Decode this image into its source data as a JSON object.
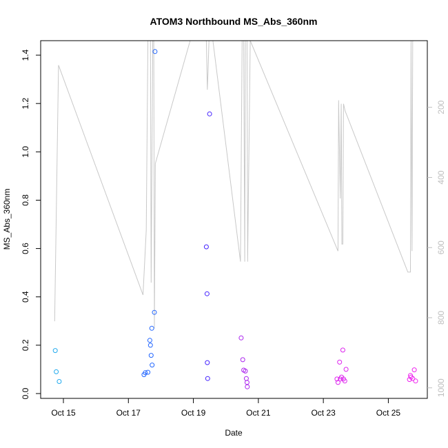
{
  "chart_data": {
    "type": "scatter",
    "title": "ATOM3 Northbound MS_Abs_360nm",
    "xlabel": "Date",
    "ylabel": "MS_Abs_360nm",
    "x_ticks": [
      "Oct 15",
      "Oct 17",
      "Oct 19",
      "Oct 21",
      "Oct 23",
      "Oct 25"
    ],
    "x_tick_days": [
      15,
      17,
      19,
      21,
      23,
      25
    ],
    "xlim_days": [
      14.3,
      26.2
    ],
    "ylim": [
      -0.02,
      1.46
    ],
    "y_ticks": [
      "0.0",
      "0.2",
      "0.4",
      "0.6",
      "0.8",
      "1.0",
      "1.2",
      "1.4"
    ],
    "y_tick_values": [
      0.0,
      0.2,
      0.4,
      0.6,
      0.8,
      1.0,
      1.2,
      1.4
    ],
    "y2_ticks": [
      "200",
      "400",
      "600",
      "800",
      "1000"
    ],
    "y2_tick_values": [
      200,
      400,
      600,
      800,
      1000
    ],
    "y2lim": [
      1030,
      10
    ],
    "grid": false,
    "points": [
      {
        "day": 14.75,
        "value": 0.178,
        "color": "#22aaee"
      },
      {
        "day": 14.78,
        "value": 0.09,
        "color": "#22aaee"
      },
      {
        "day": 14.87,
        "value": 0.05,
        "color": "#22aaee"
      },
      {
        "day": 17.48,
        "value": 0.078,
        "color": "#2266ff"
      },
      {
        "day": 17.52,
        "value": 0.086,
        "color": "#2266ff"
      },
      {
        "day": 17.6,
        "value": 0.088,
        "color": "#2266ff"
      },
      {
        "day": 17.66,
        "value": 0.22,
        "color": "#2266ff"
      },
      {
        "day": 17.68,
        "value": 0.2,
        "color": "#2266ff"
      },
      {
        "day": 17.7,
        "value": 0.158,
        "color": "#2266ff"
      },
      {
        "day": 17.72,
        "value": 0.27,
        "color": "#2266ff"
      },
      {
        "day": 17.73,
        "value": 0.118,
        "color": "#2266ff"
      },
      {
        "day": 17.8,
        "value": 0.336,
        "color": "#2266ff"
      },
      {
        "day": 17.82,
        "value": 1.415,
        "color": "#2266ff"
      },
      {
        "day": 19.4,
        "value": 0.607,
        "color": "#4422ff"
      },
      {
        "day": 19.42,
        "value": 0.413,
        "color": "#4422ff"
      },
      {
        "day": 19.43,
        "value": 0.128,
        "color": "#4422ff"
      },
      {
        "day": 19.44,
        "value": 0.062,
        "color": "#4422ff"
      },
      {
        "day": 19.5,
        "value": 1.157,
        "color": "#4422ff"
      },
      {
        "day": 20.47,
        "value": 0.23,
        "color": "#aa22ee"
      },
      {
        "day": 20.52,
        "value": 0.14,
        "color": "#aa22ee"
      },
      {
        "day": 20.55,
        "value": 0.097,
        "color": "#aa22ee"
      },
      {
        "day": 20.6,
        "value": 0.093,
        "color": "#aa22ee"
      },
      {
        "day": 20.63,
        "value": 0.062,
        "color": "#aa22ee"
      },
      {
        "day": 20.65,
        "value": 0.046,
        "color": "#aa22ee"
      },
      {
        "day": 20.66,
        "value": 0.028,
        "color": "#aa22ee"
      },
      {
        "day": 23.42,
        "value": 0.06,
        "color": "#dd22ee"
      },
      {
        "day": 23.45,
        "value": 0.046,
        "color": "#dd22ee"
      },
      {
        "day": 23.5,
        "value": 0.13,
        "color": "#dd22ee"
      },
      {
        "day": 23.52,
        "value": 0.06,
        "color": "#dd22ee"
      },
      {
        "day": 23.56,
        "value": 0.068,
        "color": "#dd22ee"
      },
      {
        "day": 23.6,
        "value": 0.18,
        "color": "#dd22ee"
      },
      {
        "day": 23.62,
        "value": 0.06,
        "color": "#dd22ee"
      },
      {
        "day": 23.66,
        "value": 0.052,
        "color": "#dd22ee"
      },
      {
        "day": 23.7,
        "value": 0.1,
        "color": "#dd22ee"
      },
      {
        "day": 25.65,
        "value": 0.058,
        "color": "#ee22ee"
      },
      {
        "day": 25.68,
        "value": 0.075,
        "color": "#ee22ee"
      },
      {
        "day": 25.7,
        "value": 0.068,
        "color": "#ee22ee"
      },
      {
        "day": 25.75,
        "value": 0.062,
        "color": "#ee22ee"
      },
      {
        "day": 25.8,
        "value": 0.098,
        "color": "#ee22ee"
      },
      {
        "day": 25.84,
        "value": 0.052,
        "color": "#ee22ee"
      }
    ],
    "altitude_line": {
      "color": "#c8c8c8",
      "points": [
        [
          14.73,
          810
        ],
        [
          14.85,
          80
        ],
        [
          17.45,
          735
        ],
        [
          17.55,
          550
        ],
        [
          17.6,
          10
        ],
        [
          17.68,
          10
        ],
        [
          17.7,
          700
        ],
        [
          17.75,
          10
        ],
        [
          17.78,
          10
        ],
        [
          17.8,
          830
        ],
        [
          17.83,
          360
        ],
        [
          18.9,
          10
        ],
        [
          19.4,
          10
        ],
        [
          19.43,
          150
        ],
        [
          19.45,
          100
        ],
        [
          19.48,
          10
        ],
        [
          19.6,
          10
        ],
        [
          20.45,
          640
        ],
        [
          20.5,
          10
        ],
        [
          20.55,
          10
        ],
        [
          20.58,
          640
        ],
        [
          20.6,
          10
        ],
        [
          20.65,
          10
        ],
        [
          20.67,
          640
        ],
        [
          20.75,
          10
        ],
        [
          23.45,
          610
        ],
        [
          23.47,
          180
        ],
        [
          23.52,
          460
        ],
        [
          23.55,
          190
        ],
        [
          23.57,
          590
        ],
        [
          23.6,
          590
        ],
        [
          23.62,
          190
        ],
        [
          23.67,
          210
        ],
        [
          25.6,
          670
        ],
        [
          25.68,
          670
        ],
        [
          25.7,
          10
        ],
        [
          25.73,
          610
        ],
        [
          25.75,
          10
        ],
        [
          25.82,
          10
        ]
      ]
    }
  }
}
